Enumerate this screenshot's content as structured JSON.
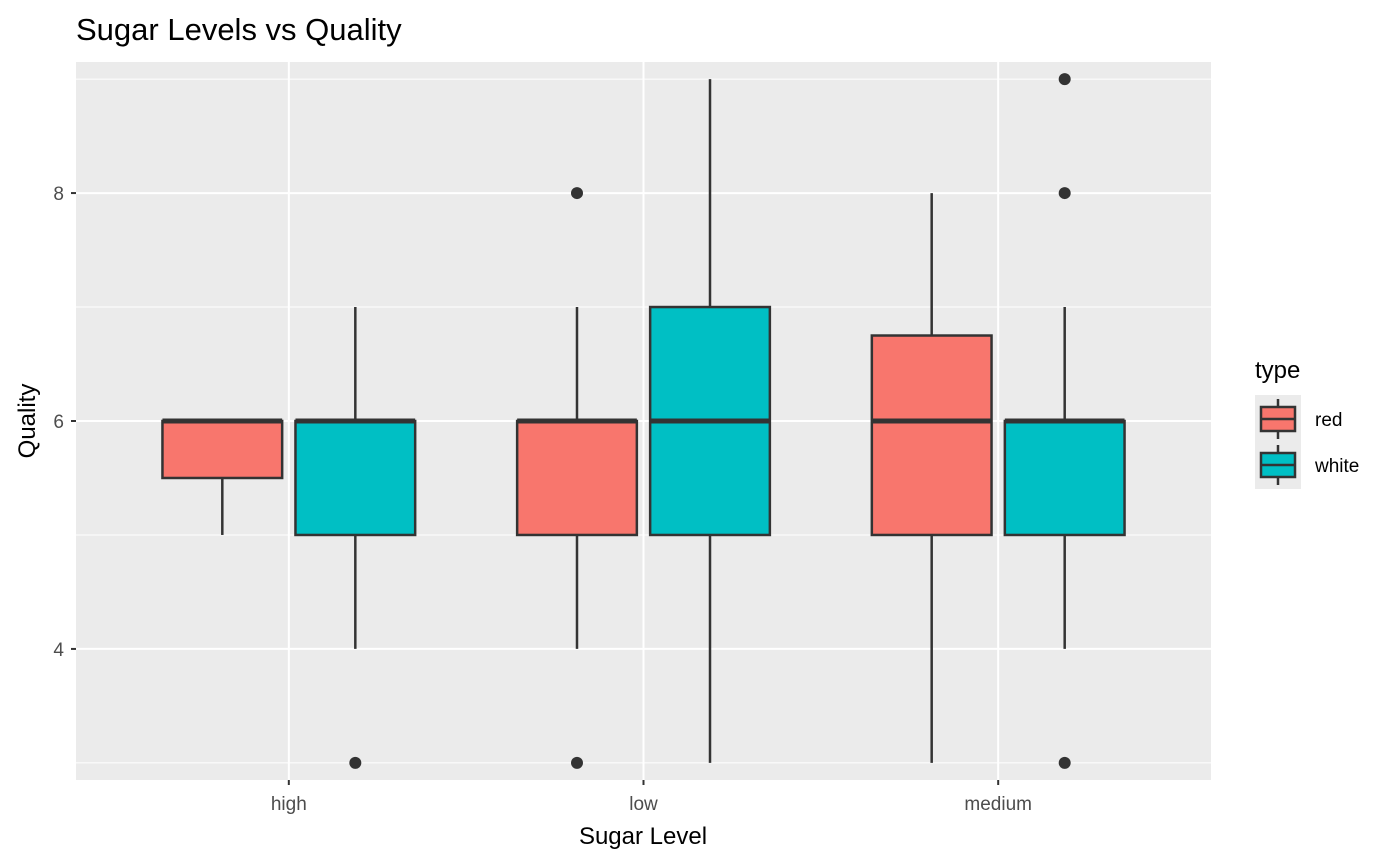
{
  "chart_data": {
    "type": "box",
    "title": "Sugar Levels vs Quality",
    "xlabel": "Sugar Level",
    "ylabel": "Quality",
    "categories": [
      "high",
      "low",
      "medium"
    ],
    "ylim": [
      2.85,
      9.15
    ],
    "yticks": [
      4,
      6,
      8
    ],
    "grid": true,
    "legend": {
      "title": "type",
      "placement": "right",
      "entries": [
        {
          "label": "red",
          "color": "#F8766D"
        },
        {
          "label": "white",
          "color": "#00BFC4"
        }
      ]
    },
    "series": [
      {
        "name": "red",
        "color": "#F8766D",
        "boxes": [
          {
            "category": "high",
            "whisker_low": 5,
            "q1": 5.5,
            "median": 6,
            "q3": 6,
            "whisker_high": 6,
            "outliers": []
          },
          {
            "category": "low",
            "whisker_low": 4,
            "q1": 5,
            "median": 6,
            "q3": 6,
            "whisker_high": 7,
            "outliers": [
              3,
              8
            ]
          },
          {
            "category": "medium",
            "whisker_low": 3,
            "q1": 5,
            "median": 6,
            "q3": 6.75,
            "whisker_high": 8,
            "outliers": []
          }
        ]
      },
      {
        "name": "white",
        "color": "#00BFC4",
        "boxes": [
          {
            "category": "high",
            "whisker_low": 4,
            "q1": 5,
            "median": 6,
            "q3": 6,
            "whisker_high": 7,
            "outliers": [
              3
            ]
          },
          {
            "category": "low",
            "whisker_low": 3,
            "q1": 5,
            "median": 6,
            "q3": 7,
            "whisker_high": 9,
            "outliers": []
          },
          {
            "category": "medium",
            "whisker_low": 4,
            "q1": 5,
            "median": 6,
            "q3": 6,
            "whisker_high": 7,
            "outliers": [
              3,
              8,
              9
            ]
          }
        ]
      }
    ]
  }
}
